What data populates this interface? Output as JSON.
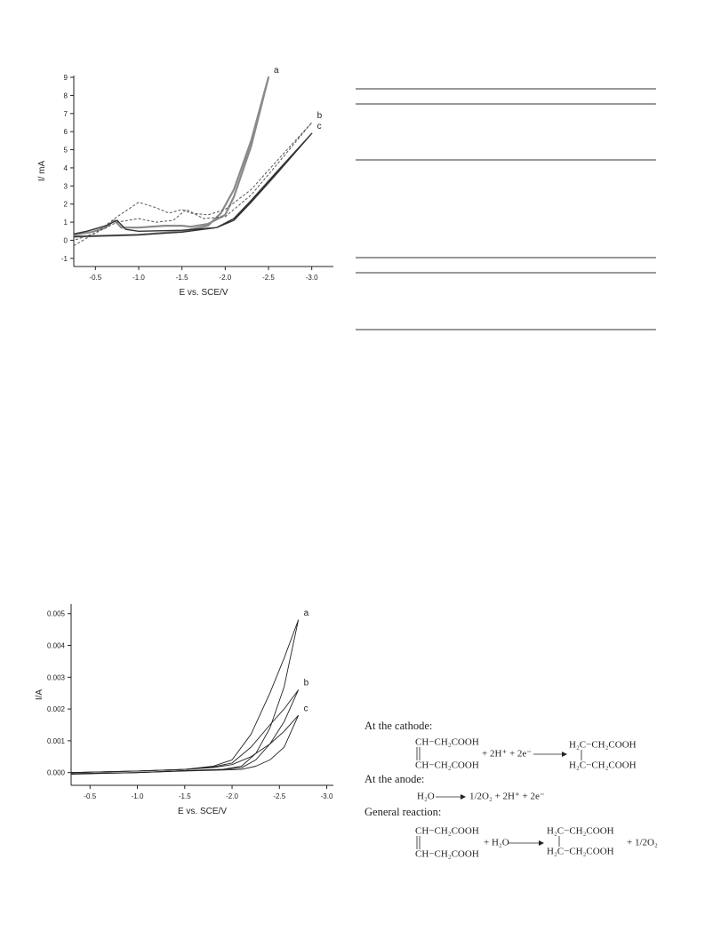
{
  "chart_data": [
    {
      "type": "line",
      "xlabel": "E vs. SCE/V",
      "ylabel": "I/ mA",
      "xlim": [
        -0.25,
        -3.25
      ],
      "ylim": [
        -1.45,
        9.1
      ],
      "xticks": [
        -0.5,
        {
          "value": -1.0,
          "label": "-1.0"
        },
        -1.5,
        {
          "value": -2.0,
          "label": "-2.0"
        },
        -2.5,
        {
          "value": -3.0,
          "label": "-3.0"
        }
      ],
      "yticks": [
        -1,
        0,
        1,
        2,
        3,
        4,
        5,
        6,
        7,
        8,
        9
      ],
      "series": [
        {
          "name": "a",
          "color": "#8a8a8a",
          "line_style": "solid",
          "x": [
            -0.25,
            -0.6,
            -1.0,
            -1.5,
            -1.8,
            -1.95,
            -2.1,
            -2.3,
            -2.5,
            -2.3,
            -2.1,
            -2.0,
            -1.8,
            -1.6,
            -1.5,
            -1.3,
            -1.0,
            -0.8,
            -0.72,
            -0.62,
            -0.45,
            -0.25
          ],
          "values": [
            0.2,
            0.25,
            0.3,
            0.5,
            0.8,
            1.5,
            2.8,
            5.5,
            9.0,
            5.2,
            2.4,
            1.4,
            0.9,
            0.75,
            0.8,
            0.8,
            0.7,
            0.7,
            1.1,
            0.7,
            0.45,
            0.3
          ]
        },
        {
          "name": "b",
          "color": "#555555",
          "line_style": "dashed",
          "x": [
            -0.25,
            -0.5,
            -0.75,
            -1.0,
            -1.2,
            -1.35,
            -1.5,
            -1.6,
            -1.8,
            -2.0,
            -2.3,
            -2.6,
            -3.0,
            -2.6,
            -2.3,
            -2.0,
            -1.75,
            -1.55,
            -1.4,
            -1.2,
            -1.0,
            -0.75,
            -0.5,
            -0.25
          ],
          "values": [
            -0.3,
            0.4,
            1.3,
            2.1,
            1.8,
            1.5,
            1.7,
            1.5,
            1.4,
            1.7,
            2.8,
            4.4,
            6.5,
            4.2,
            2.5,
            1.3,
            1.2,
            1.7,
            1.1,
            1.0,
            1.2,
            1.0,
            0.4,
            0.0
          ]
        },
        {
          "name": "c",
          "color": "#333333",
          "line_style": "solid",
          "x": [
            -0.25,
            -0.6,
            -1.0,
            -1.5,
            -1.9,
            -2.1,
            -2.3,
            -2.6,
            -3.0,
            -2.6,
            -2.3,
            -2.1,
            -1.9,
            -1.5,
            -1.0,
            -0.85,
            -0.75,
            -0.62,
            -0.4,
            -0.25
          ],
          "values": [
            0.2,
            0.25,
            0.3,
            0.45,
            0.7,
            1.2,
            2.2,
            3.8,
            5.9,
            3.7,
            2.1,
            1.1,
            0.7,
            0.55,
            0.5,
            0.6,
            1.1,
            0.8,
            0.5,
            0.35
          ]
        }
      ]
    },
    {
      "type": "line",
      "xlabel": "E vs. SCE/V",
      "ylabel": "I/A",
      "xlim": [
        -0.3,
        -3.07
      ],
      "ylim": [
        -0.0004,
        0.0053
      ],
      "xticks": [
        -0.5,
        {
          "value": -1.0,
          "label": "-1.0"
        },
        -1.5,
        {
          "value": -2.0,
          "label": "-2.0"
        },
        -2.5,
        {
          "value": -3.0,
          "label": "-3.0"
        }
      ],
      "yticks": [
        {
          "value": 0,
          "label": "0.000"
        },
        0.001,
        0.002,
        0.003,
        0.004,
        0.005
      ],
      "series": [
        {
          "name": "a",
          "color": "#222222",
          "line_style": "solid",
          "x": [
            -0.3,
            -1.0,
            -1.5,
            -1.8,
            -2.0,
            -2.2,
            -2.4,
            -2.55,
            -2.7,
            -2.55,
            -2.4,
            -2.25,
            -2.1,
            -1.9,
            -1.5,
            -1.0,
            -0.3
          ],
          "values": [
            0.0,
            5e-05,
            0.0001,
            0.0002,
            0.0004,
            0.0012,
            0.0025,
            0.0036,
            0.0048,
            0.0027,
            0.0014,
            0.0006,
            0.0002,
            0.0001,
            6e-05,
            0.0,
            -5e-05
          ]
        },
        {
          "name": "b",
          "color": "#222222",
          "line_style": "solid",
          "x": [
            -0.3,
            -1.0,
            -1.5,
            -1.8,
            -2.0,
            -2.2,
            -2.4,
            -2.55,
            -2.7,
            -2.55,
            -2.4,
            -2.25,
            -2.1,
            -1.9,
            -1.5,
            -1.0,
            -0.3
          ],
          "values": [
            0.0,
            5e-05,
            0.0001,
            0.00018,
            0.0003,
            0.0008,
            0.0015,
            0.002,
            0.0026,
            0.0016,
            0.0009,
            0.0004,
            0.00015,
            0.0001,
            6e-05,
            0.0,
            -4e-05
          ]
        },
        {
          "name": "c",
          "color": "#222222",
          "line_style": "solid",
          "x": [
            -0.3,
            -1.0,
            -1.5,
            -1.8,
            -2.0,
            -2.2,
            -2.4,
            -2.55,
            -2.7,
            -2.55,
            -2.4,
            -2.25,
            -2.1,
            -1.9,
            -1.5,
            -1.0,
            -0.3
          ],
          "values": [
            0.0,
            5e-05,
            0.0001,
            0.00016,
            0.00025,
            0.0005,
            0.0009,
            0.0013,
            0.0018,
            0.0008,
            0.0004,
            0.0002,
            0.0001,
            8e-05,
            5e-05,
            0.0,
            -3e-05
          ]
        }
      ]
    }
  ],
  "document": {
    "cathode": {
      "heading": "At the cathode:",
      "reactant_top": "CH−CH₂COOH",
      "reactant_bottom": "CH−CH₂COOH",
      "reagents": "+ 2H⁺ + 2e⁻",
      "product_top": "H₂C−CH₂COOH",
      "product_bottom": "H₂C−CH₂COOH"
    },
    "anode": {
      "heading": "At the anode:",
      "reactant": "H₂O",
      "products": "1/2O₂ + 2H⁺ + 2e⁻"
    },
    "general": {
      "heading": "General reaction:",
      "reactant_top": "CH−CH₂COOH",
      "reactant_bottom": "CH−CH₂COOH",
      "reagents": "+ H₂O",
      "product_top": "H₂C−CH₂COOH",
      "product_bottom": "H₂C−CH₂COOH",
      "extra": "+ 1/2O₂"
    }
  }
}
